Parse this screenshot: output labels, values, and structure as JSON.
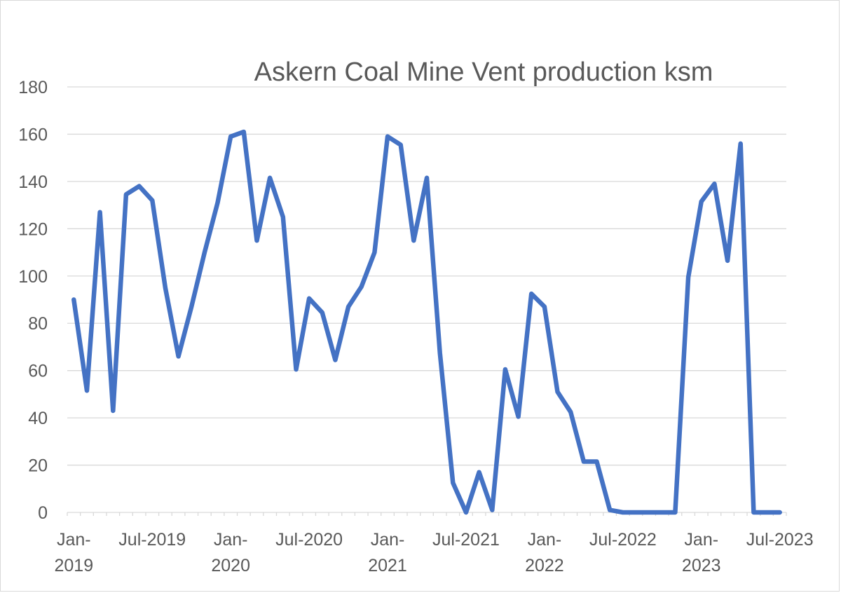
{
  "chart_data": {
    "type": "line",
    "title": "Askern Coal Mine Vent production ksm",
    "xlabel": "",
    "ylabel": "",
    "ylim": [
      0,
      180
    ],
    "y_ticks": [
      "0",
      "20",
      "40",
      "60",
      "80",
      "100",
      "120",
      "140",
      "160",
      "180"
    ],
    "x_ticks": [
      {
        "line1": "Jan-",
        "line2": "2019"
      },
      {
        "line1": "Jul-2019",
        "line2": ""
      },
      {
        "line1": "Jan-",
        "line2": "2020"
      },
      {
        "line1": "Jul-2020",
        "line2": ""
      },
      {
        "line1": "Jan-",
        "line2": "2021"
      },
      {
        "line1": "Jul-2021",
        "line2": ""
      },
      {
        "line1": "Jan-",
        "line2": "2022"
      },
      {
        "line1": "Jul-2022",
        "line2": ""
      },
      {
        "line1": "Jan-",
        "line2": "2023"
      },
      {
        "line1": "Jul-2023",
        "line2": ""
      }
    ],
    "grid": true,
    "legend": "none",
    "colors": {
      "line": "#4472C4",
      "grid": "#D9D9D9",
      "text": "#595959"
    },
    "series": [
      {
        "x": [
          "2019-01",
          "2019-02",
          "2019-03",
          "2019-04",
          "2019-05",
          "2019-06",
          "2019-07",
          "2019-08",
          "2019-09",
          "2019-10",
          "2019-11",
          "2019-12",
          "2020-01",
          "2020-02",
          "2020-03",
          "2020-04",
          "2020-05",
          "2020-06",
          "2020-07",
          "2020-08",
          "2020-09",
          "2020-10",
          "2020-11",
          "2020-12",
          "2021-01",
          "2021-02",
          "2021-03",
          "2021-04",
          "2021-05",
          "2021-06",
          "2021-07",
          "2021-08",
          "2021-09",
          "2021-10",
          "2021-11",
          "2021-12",
          "2022-01",
          "2022-02",
          "2022-03",
          "2022-04",
          "2022-05",
          "2022-06",
          "2022-07",
          "2022-08",
          "2022-09",
          "2022-10",
          "2022-11",
          "2022-12",
          "2023-01",
          "2023-02",
          "2023-03",
          "2023-04",
          "2023-05",
          "2023-06",
          "2023-07"
        ],
        "values": [
          90,
          51.5,
          127,
          43,
          134.5,
          138,
          132,
          95,
          66,
          87,
          110,
          131,
          159,
          161,
          115,
          141.5,
          125,
          60.5,
          90.5,
          84.5,
          64.5,
          87,
          95.5,
          110,
          159,
          155.5,
          115,
          141.5,
          67.5,
          12.5,
          0,
          17,
          1,
          60.5,
          40.5,
          92.5,
          87,
          51,
          42.5,
          21.5,
          21.5,
          1,
          0,
          0,
          0,
          0,
          0,
          99.5,
          131.5,
          139,
          106.5,
          156,
          0,
          0,
          0
        ]
      }
    ]
  }
}
